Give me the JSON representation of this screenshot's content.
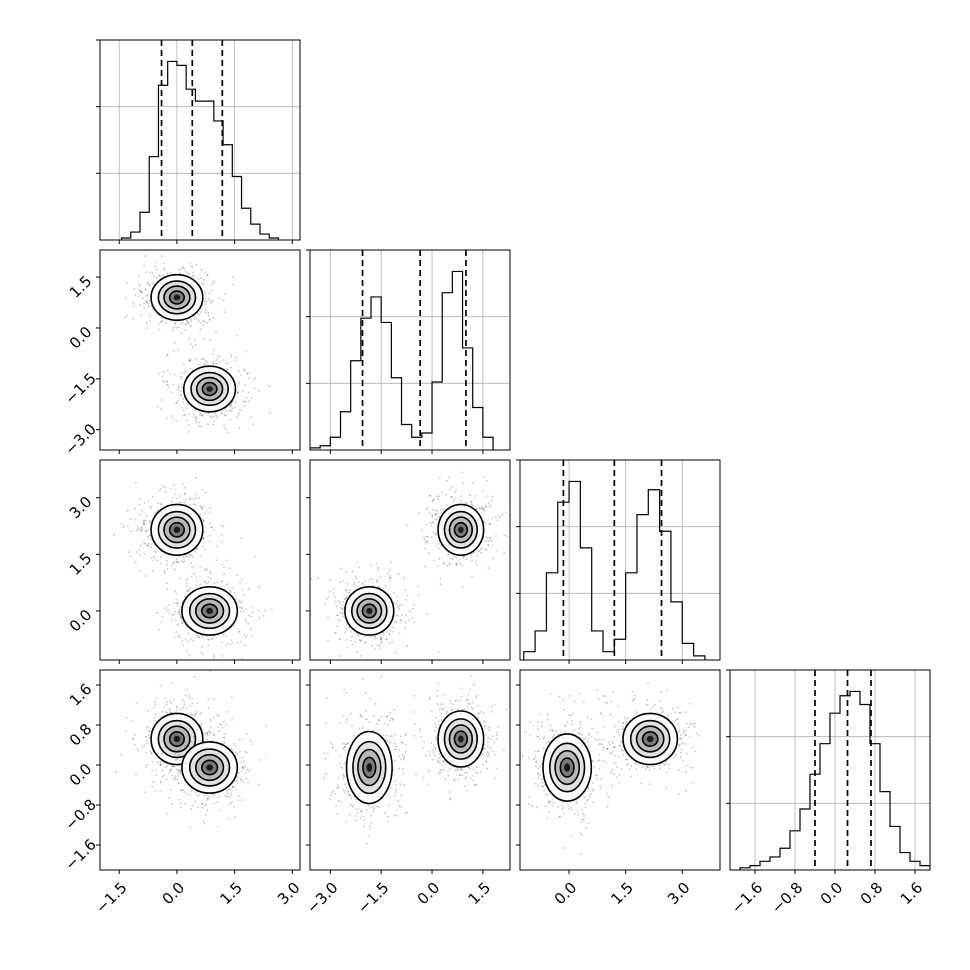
{
  "chart_data": {
    "type": "corner",
    "description_free": true,
    "parameters": 4,
    "panel_grid": "lower-triangle",
    "colors": {
      "line": "#000000",
      "grid": "#b0b0b0",
      "points": "#000000"
    },
    "grid": true,
    "axes": [
      {
        "range": [
          -2.0,
          3.2
        ],
        "ticks": [
          -1.5,
          0.0,
          1.5,
          3.0
        ],
        "tick_labels": [
          "−1.5",
          "0.0",
          "1.5",
          "3.0"
        ]
      },
      {
        "range": [
          -3.6,
          2.3
        ],
        "ticks": [
          -3.0,
          -1.5,
          0.0,
          1.5
        ],
        "tick_labels": [
          "−3.0",
          "−1.5",
          "0.0",
          "1.5"
        ]
      },
      {
        "range": [
          -1.3,
          4.0
        ],
        "ticks": [
          0.0,
          1.5,
          3.0
        ],
        "tick_labels": [
          "0.0",
          "1.5",
          "3.0"
        ]
      },
      {
        "range": [
          -2.1,
          1.9
        ],
        "ticks": [
          -1.6,
          -0.8,
          0.0,
          0.8,
          1.6
        ],
        "tick_labels": [
          "−1.6",
          "−0.8",
          "0.0",
          "0.8",
          "1.6"
        ]
      }
    ],
    "histograms": [
      {
        "bins": [
          -1.44,
          -1.2,
          -0.96,
          -0.72,
          -0.48,
          -0.24,
          0.0,
          0.24,
          0.48,
          0.72,
          0.96,
          1.2,
          1.44,
          1.68,
          1.92,
          2.16,
          2.4,
          2.64
        ],
        "counts": [
          0.5,
          2,
          7,
          21,
          39,
          45,
          44,
          38,
          35,
          35,
          30,
          24,
          16,
          8,
          4,
          1.5,
          0.5
        ],
        "quantiles": [
          -0.4,
          0.4,
          1.18
        ]
      },
      {
        "bins": [
          -3.6,
          -3.3,
          -3.0,
          -2.7,
          -2.4,
          -2.1,
          -1.8,
          -1.5,
          -1.2,
          -0.9,
          -0.6,
          -0.3,
          0.0,
          0.3,
          0.6,
          0.9,
          1.2,
          1.5,
          1.8
        ],
        "counts": [
          0.5,
          1,
          3,
          9,
          21,
          31,
          36,
          30,
          17,
          6,
          3,
          4,
          16,
          37,
          42,
          24,
          10,
          3
        ],
        "quantiles": [
          -2.05,
          -0.35,
          1.0
        ]
      },
      {
        "bins": [
          -1.2,
          -0.9,
          -0.6,
          -0.3,
          0.0,
          0.3,
          0.6,
          0.9,
          1.2,
          1.5,
          1.8,
          2.1,
          2.4,
          2.7,
          3.0,
          3.3,
          3.6
        ],
        "counts": [
          2,
          7,
          21,
          38,
          43,
          27,
          7,
          2,
          5,
          21,
          35,
          41,
          31,
          14,
          4,
          1
        ],
        "quantiles": [
          -0.15,
          1.2,
          2.45
        ]
      },
      {
        "bins": [
          -1.9,
          -1.7,
          -1.5,
          -1.3,
          -1.1,
          -0.9,
          -0.7,
          -0.5,
          -0.3,
          -0.1,
          0.1,
          0.3,
          0.5,
          0.7,
          0.9,
          1.1,
          1.3,
          1.5,
          1.7,
          1.9
        ],
        "counts": [
          0.5,
          1,
          2,
          3,
          5,
          9,
          14,
          22,
          29,
          36,
          40,
          41,
          38,
          29,
          18,
          10,
          4,
          2,
          1
        ],
        "quantiles": [
          -0.4,
          0.25,
          0.72
        ]
      }
    ],
    "pairs": [
      {
        "x": 0,
        "y": 1,
        "clusters": [
          {
            "center": [
              0.0,
              0.9
            ],
            "sd": [
              0.42,
              0.42
            ]
          },
          {
            "center": [
              0.85,
              -1.8
            ],
            "sd": [
              0.42,
              0.42
            ]
          }
        ]
      },
      {
        "x": 0,
        "y": 2,
        "clusters": [
          {
            "center": [
              0.0,
              2.15
            ],
            "sd": [
              0.42,
              0.42
            ]
          },
          {
            "center": [
              0.85,
              0.0
            ],
            "sd": [
              0.45,
              0.4
            ]
          }
        ]
      },
      {
        "x": 1,
        "y": 2,
        "clusters": [
          {
            "center": [
              0.85,
              2.15
            ],
            "sd": [
              0.42,
              0.42
            ]
          },
          {
            "center": [
              -1.85,
              0.0
            ],
            "sd": [
              0.45,
              0.4
            ]
          }
        ]
      },
      {
        "x": 0,
        "y": 3,
        "clusters": [
          {
            "center": [
              0.0,
              0.52
            ],
            "sd": [
              0.42,
              0.32
            ]
          },
          {
            "center": [
              0.85,
              -0.05
            ],
            "sd": [
              0.45,
              0.32
            ]
          }
        ]
      },
      {
        "x": 1,
        "y": 3,
        "clusters": [
          {
            "center": [
              -1.85,
              -0.05
            ],
            "sd": [
              0.42,
              0.45
            ]
          },
          {
            "center": [
              0.85,
              0.52
            ],
            "sd": [
              0.42,
              0.35
            ]
          }
        ]
      },
      {
        "x": 2,
        "y": 3,
        "clusters": [
          {
            "center": [
              -0.05,
              -0.05
            ],
            "sd": [
              0.4,
              0.42
            ]
          },
          {
            "center": [
              2.15,
              0.52
            ],
            "sd": [
              0.45,
              0.32
            ]
          }
        ]
      }
    ]
  }
}
